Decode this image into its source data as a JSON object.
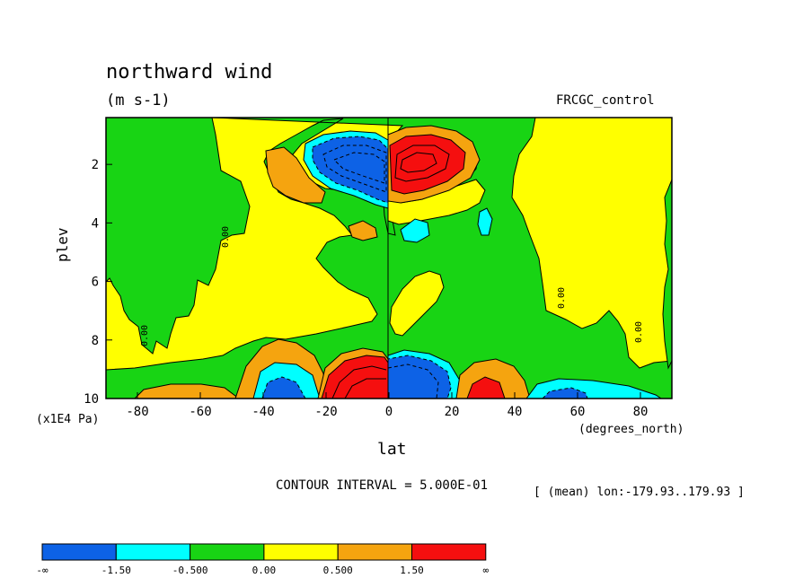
{
  "header": {
    "title": "northward wind",
    "units": "(m s-1)",
    "run": "FRCGC_control"
  },
  "axes": {
    "ylabel": "plev",
    "yunits": "(x1E4 Pa)",
    "xlabel": "lat",
    "xunits": "(degrees_north)"
  },
  "footer": {
    "interval": "CONTOUR INTERVAL = 5.000E-01",
    "mean": "[ (mean) lon:-179.93..179.93 ]"
  },
  "chart_data": {
    "type": "heatmap",
    "variable": "northward wind",
    "xlim": [
      -90,
      90
    ],
    "ylim": [
      10,
      0.4
    ],
    "x_ticks": [
      -80,
      -60,
      -40,
      -20,
      0,
      20,
      40,
      60,
      80
    ],
    "x_tick_labels": [
      "-80",
      "-60",
      "-40",
      "-20",
      "0",
      "20",
      "40",
      "60",
      "80"
    ],
    "y_ticks": [
      2,
      4,
      6,
      8,
      10
    ],
    "y_tick_labels": [
      "2",
      "4",
      "6",
      "8",
      "10"
    ],
    "contour_interval": 0.5,
    "contour_label": "0.00",
    "colors": {
      "level_lt_-1.5": "#0d62e6",
      "level_-1.5_-0.5": "#00ffff",
      "level_-0.5_0": "#18d414",
      "level_0_0.5": "#ffff00",
      "level_0.5_1.5": "#f5a40f",
      "level_gt_1.5": "#f50f0f"
    },
    "colorbar": {
      "colors": [
        "#0d62e6",
        "#00ffff",
        "#18d414",
        "#ffff00",
        "#f5a40f",
        "#f50f0f"
      ],
      "labels": [
        "-∞",
        "-1.50",
        "-0.500",
        "0.00",
        "0.500",
        "1.50",
        "∞"
      ]
    },
    "features": [
      {
        "name": "upper-level southward wind core",
        "lat": -8,
        "plev": 1.5,
        "value": -2.5
      },
      {
        "name": "upper-level northward wind core",
        "lat": 8,
        "plev": 2.0,
        "value": 3.5
      },
      {
        "name": "surface northward wind core",
        "lat": -7,
        "plev": 9.8,
        "value": 3.5
      },
      {
        "name": "surface southward wind core",
        "lat": 8,
        "plev": 9.8,
        "value": -3.0
      },
      {
        "name": "southern surface southward flow",
        "lat": -35,
        "plev": 9.8,
        "value": -2.0
      },
      {
        "name": "subtropical surface northward flow",
        "lat": 30,
        "plev": 9.8,
        "value": 2.0
      },
      {
        "name": "northern surface southward flow",
        "lat": 60,
        "plev": 9.8,
        "value": -1.0
      }
    ]
  }
}
